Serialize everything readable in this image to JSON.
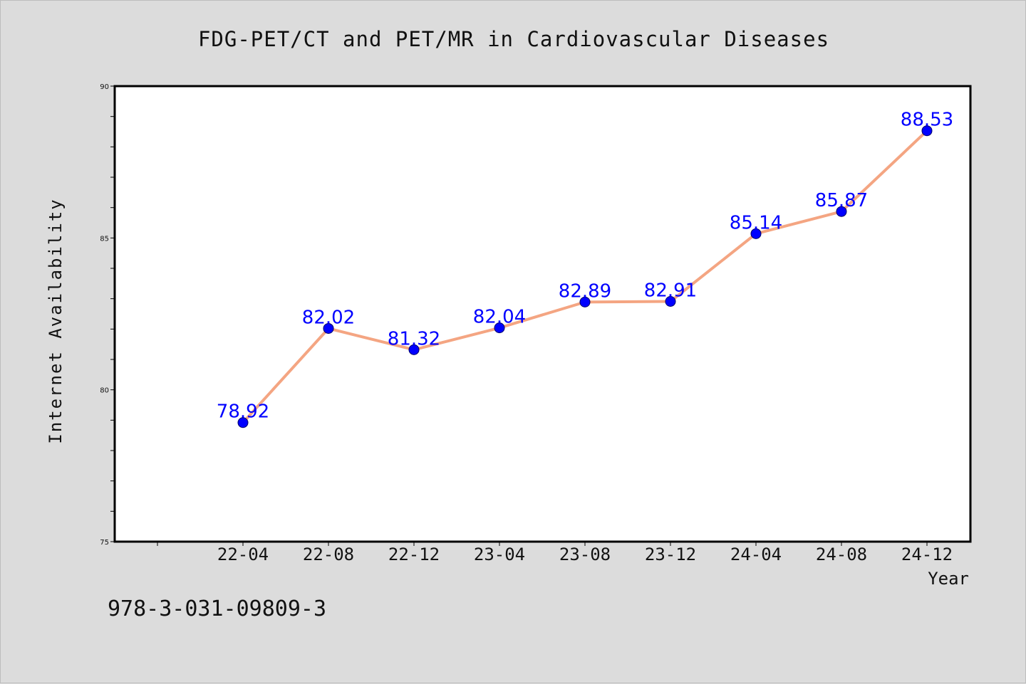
{
  "footer_code": "978-3-031-09809-3",
  "colors": {
    "background": "#dcdcdc",
    "plot_area": "#ffffff",
    "line": "#f4a582",
    "marker": "#0000ff",
    "data_label": "#0000ff"
  },
  "chart_data": {
    "type": "line",
    "title": "FDG-PET/CT and PET/MR in Cardiovascular Diseases",
    "xlabel": "Year",
    "ylabel": "Internet Availability",
    "categories": [
      "22-04",
      "22-08",
      "22-12",
      "23-04",
      "23-08",
      "23-12",
      "24-04",
      "24-08",
      "24-12"
    ],
    "series": [
      {
        "values": [
          78.92,
          82.02,
          81.32,
          82.04,
          82.89,
          82.91,
          85.14,
          85.87,
          88.53
        ],
        "labels": [
          "78.92",
          "82.02",
          "81.32",
          "82.04",
          "82.89",
          "82.91",
          "85.14",
          "85.87",
          "88.53"
        ]
      }
    ],
    "ylim": [
      75,
      90
    ],
    "yticks": [
      "75",
      "80",
      "85",
      "90"
    ],
    "grid": false,
    "legend": "none"
  }
}
